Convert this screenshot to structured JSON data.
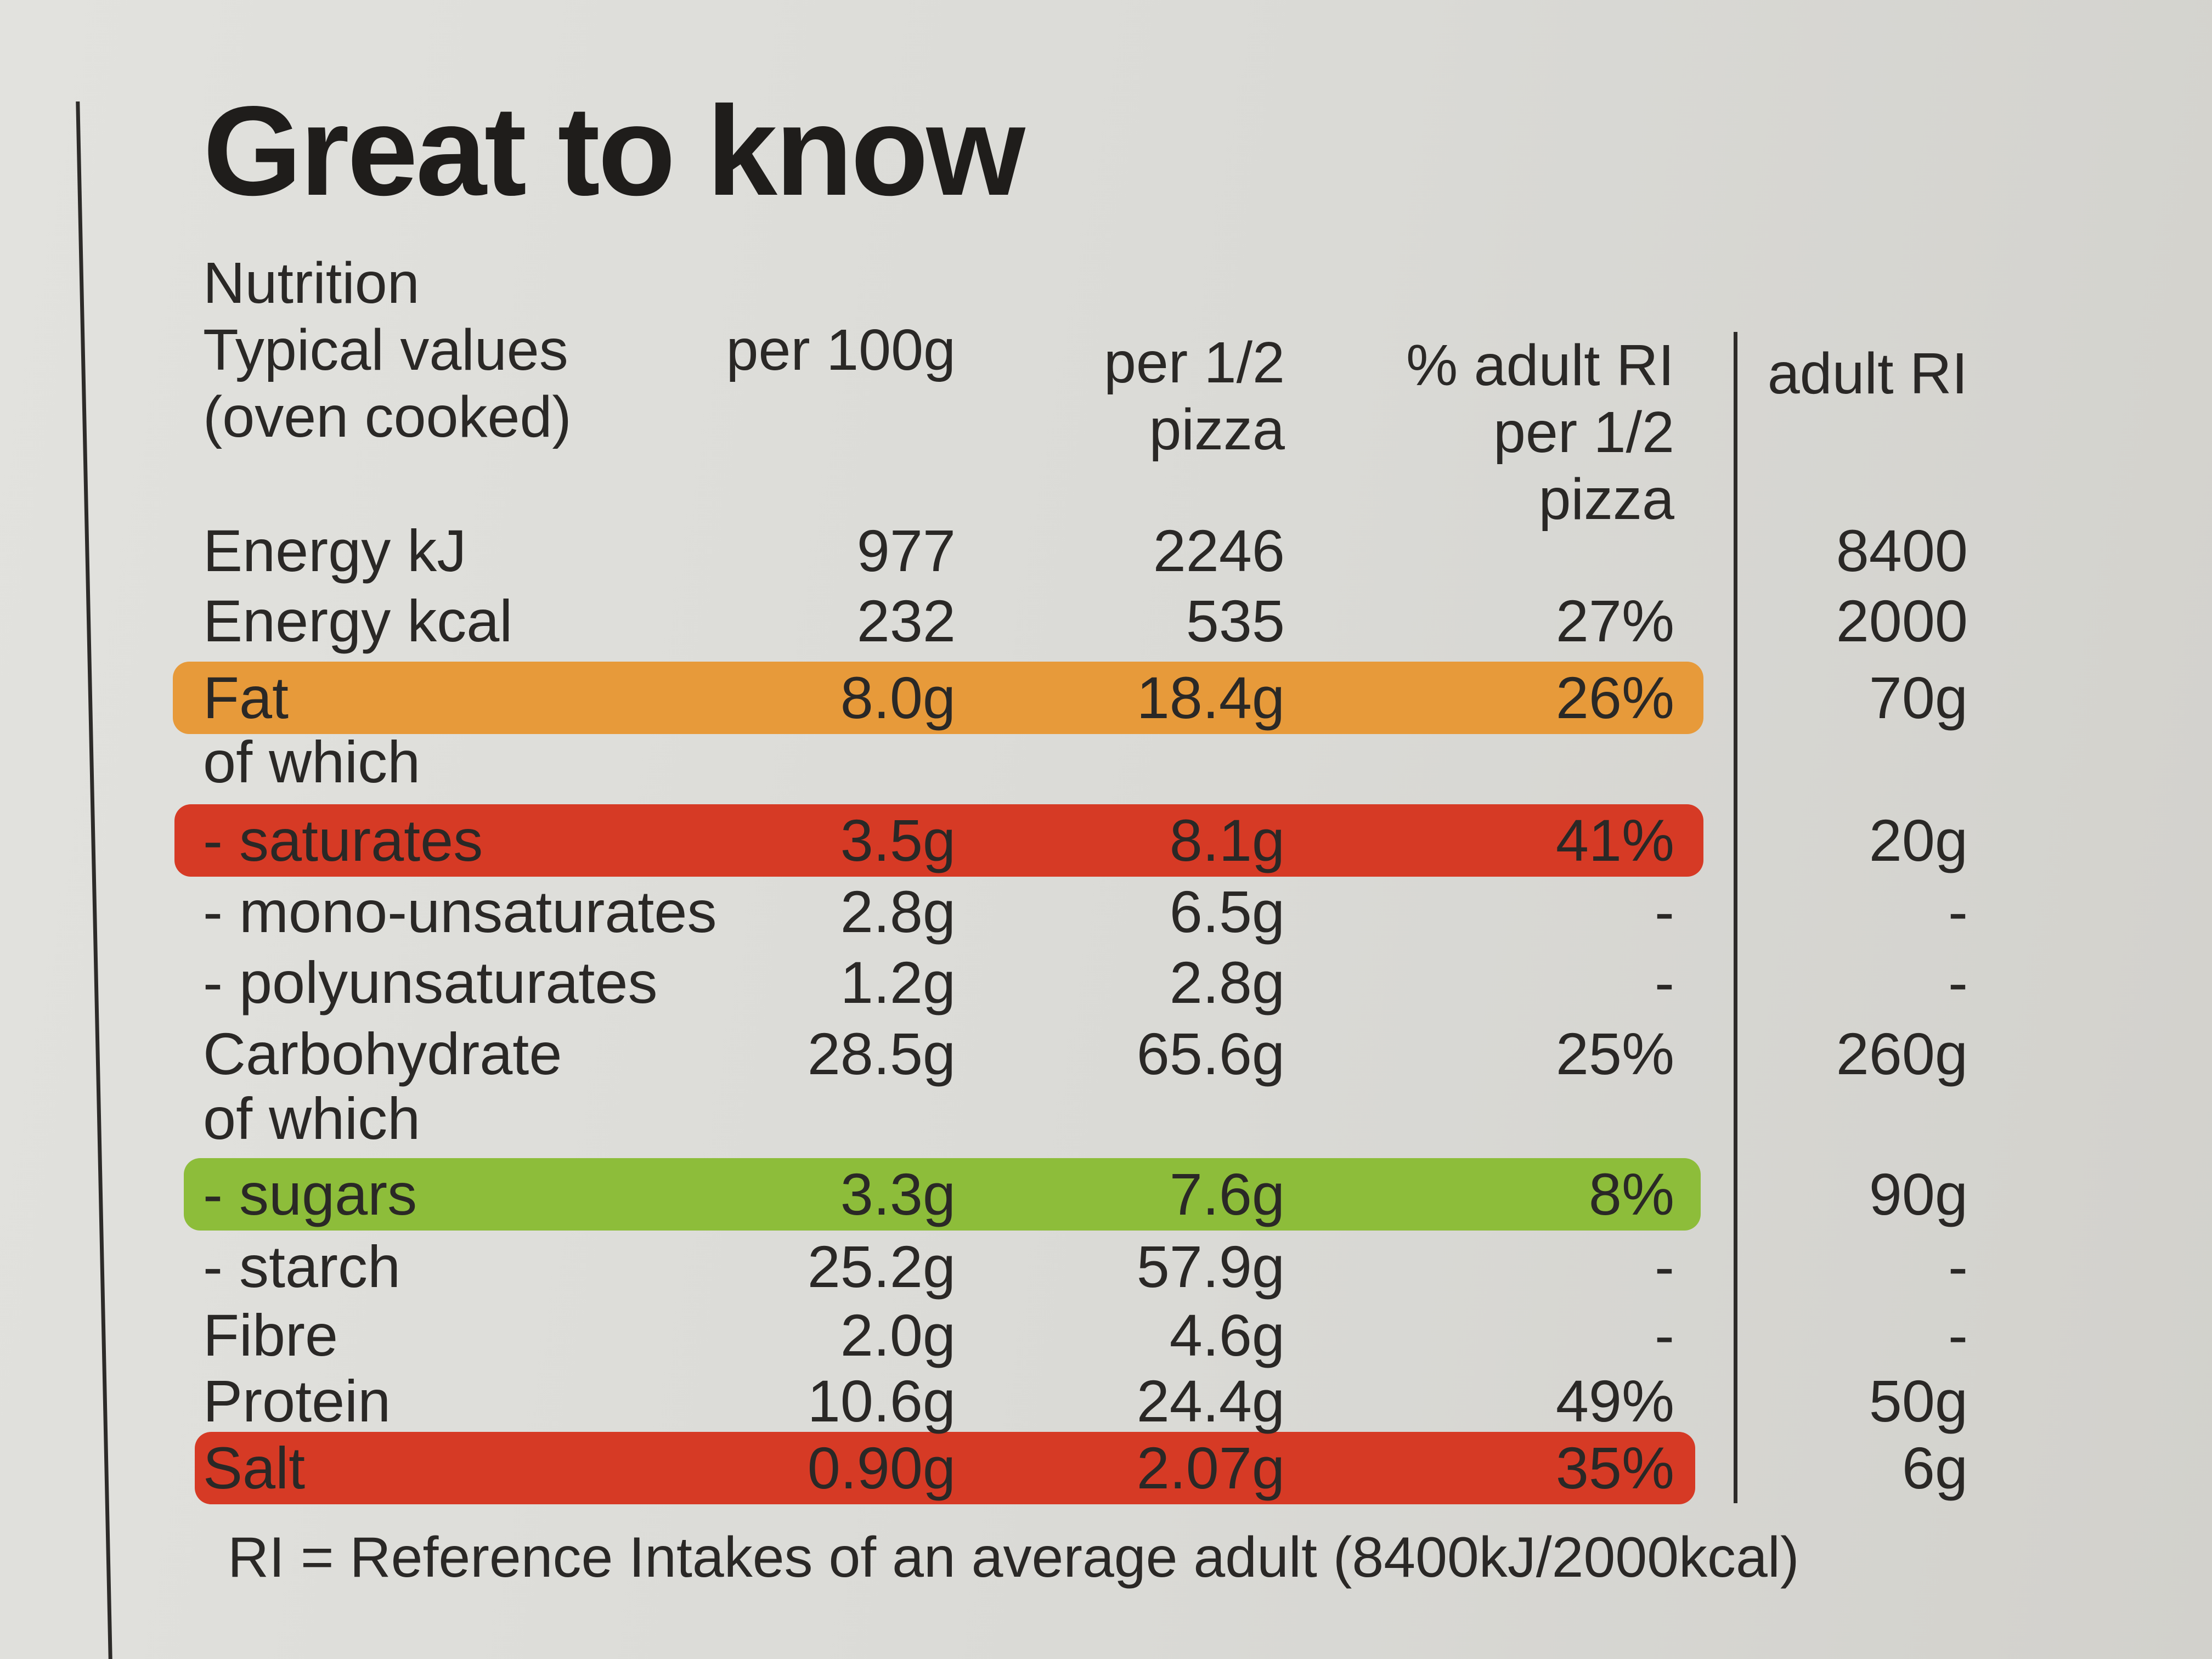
{
  "title": "Great to know",
  "headers": {
    "label": [
      "Nutrition",
      "Typical values",
      "(oven cooked)"
    ],
    "per_100g": "per 100g",
    "per_half": [
      "per 1/2",
      "pizza"
    ],
    "pct_ri": [
      "% adult RI",
      "per 1/2",
      "pizza"
    ],
    "adult_ri": "adult RI"
  },
  "colors": {
    "amber": "#e79a3a",
    "red": "#d63a25",
    "green": "#8dbd3a"
  },
  "rows": [
    {
      "label": "Energy kJ",
      "per_100g": "977",
      "per_half": "2246",
      "pct_ri": "",
      "adult_ri": "8400",
      "highlight": ""
    },
    {
      "label": "Energy kcal",
      "per_100g": "232",
      "per_half": "535",
      "pct_ri": "27%",
      "adult_ri": "2000",
      "highlight": ""
    },
    {
      "label": "Fat",
      "per_100g": "8.0g",
      "per_half": "18.4g",
      "pct_ri": "26%",
      "adult_ri": "70g",
      "highlight": "amber"
    },
    {
      "label": "of which",
      "per_100g": "",
      "per_half": "",
      "pct_ri": "",
      "adult_ri": "",
      "highlight": ""
    },
    {
      "label": "- saturates",
      "per_100g": "3.5g",
      "per_half": "8.1g",
      "pct_ri": "41%",
      "adult_ri": "20g",
      "highlight": "red"
    },
    {
      "label": "- mono-unsaturates",
      "per_100g": "2.8g",
      "per_half": "6.5g",
      "pct_ri": "-",
      "adult_ri": "-",
      "highlight": ""
    },
    {
      "label": "- polyunsaturates",
      "per_100g": "1.2g",
      "per_half": "2.8g",
      "pct_ri": "-",
      "adult_ri": "-",
      "highlight": ""
    },
    {
      "label": "Carbohydrate",
      "per_100g": "28.5g",
      "per_half": "65.6g",
      "pct_ri": "25%",
      "adult_ri": "260g",
      "highlight": ""
    },
    {
      "label": "of which",
      "per_100g": "",
      "per_half": "",
      "pct_ri": "",
      "adult_ri": "",
      "highlight": ""
    },
    {
      "label": "- sugars",
      "per_100g": "3.3g",
      "per_half": "7.6g",
      "pct_ri": "8%",
      "adult_ri": "90g",
      "highlight": "green"
    },
    {
      "label": "- starch",
      "per_100g": "25.2g",
      "per_half": "57.9g",
      "pct_ri": "-",
      "adult_ri": "-",
      "highlight": ""
    },
    {
      "label": "Fibre",
      "per_100g": "2.0g",
      "per_half": "4.6g",
      "pct_ri": "-",
      "adult_ri": "-",
      "highlight": ""
    },
    {
      "label": "Protein",
      "per_100g": "10.6g",
      "per_half": "24.4g",
      "pct_ri": "49%",
      "adult_ri": "50g",
      "highlight": ""
    },
    {
      "label": "Salt",
      "per_100g": "0.90g",
      "per_half": "2.07g",
      "pct_ri": "35%",
      "adult_ri": "6g",
      "highlight": "red"
    }
  ],
  "footnote": "RI = Reference Intakes of an average adult (8400kJ/2000kcal)"
}
